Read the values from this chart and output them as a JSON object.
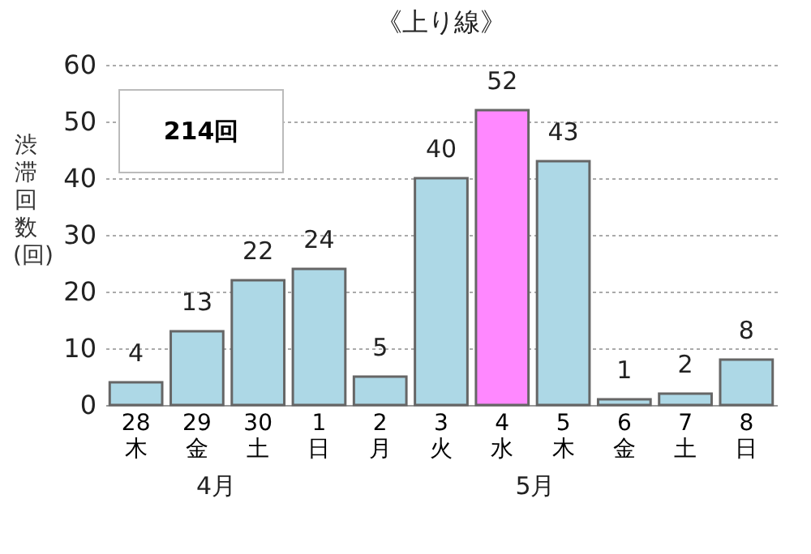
{
  "chart_data": {
    "type": "bar",
    "title": "《上り線》",
    "ylabel": "渋滞回数(回)",
    "categories": [
      "28\n木",
      "29\n金",
      "30\n土",
      "1\n日",
      "2\n月",
      "3\n火",
      "4\n水",
      "5\n木",
      "6\n金",
      "7\n土",
      "8\n日"
    ],
    "values": [
      4,
      13,
      22,
      24,
      5,
      40,
      52,
      43,
      1,
      2,
      8
    ],
    "colors": [
      "#add8e6",
      "#add8e6",
      "#add8e6",
      "#add8e6",
      "#add8e6",
      "#add8e6",
      "#ff88ff",
      "#add8e6",
      "#add8e6",
      "#add8e6",
      "#add8e6"
    ],
    "ylim": [
      0,
      60
    ],
    "yticks": [
      0,
      10,
      20,
      30,
      40,
      50,
      60
    ],
    "grid": "y",
    "data_labels": true,
    "annotations": [
      "214回",
      "4月",
      "5月"
    ]
  }
}
